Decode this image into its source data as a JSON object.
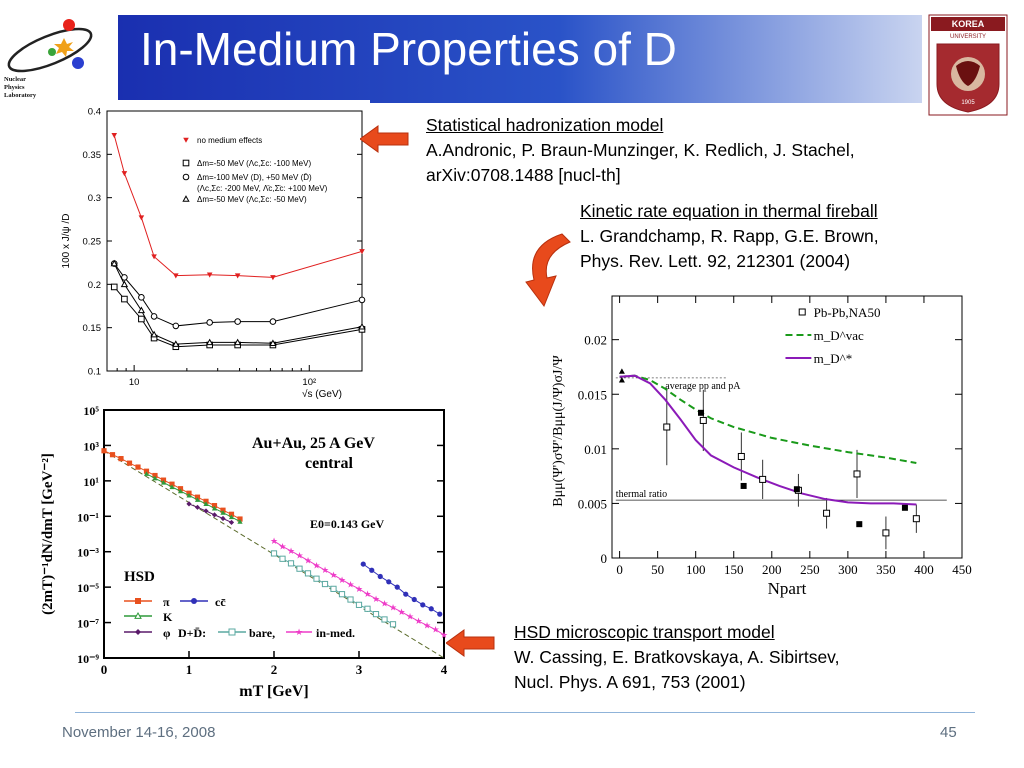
{
  "slide": {
    "title": "In-Medium Properties of D",
    "lab_logo_text": [
      "Nuclear",
      "Physics",
      "Laboratory"
    ],
    "university_logo_text": "KOREA UNIVERSITY",
    "university_year": "1905",
    "footer_date": "November 14-16, 2008",
    "page_number": "45",
    "colors": {
      "title_bar": "#2a53c8",
      "arrow": "#e84a1c",
      "footer_line": "#8fb3d9"
    }
  },
  "refs": {
    "stat": {
      "heading": "Statistical hadronization model",
      "authors": "A.Andronic, P. Braun-Munzinger, K. Redlich, J. Stachel,",
      "citation": "arXiv:0708.1488 [nucl-th]"
    },
    "kinetic": {
      "heading": "Kinetic rate equation in thermal fireball",
      "authors": "L. Grandchamp, R. Rapp, G.E. Brown,",
      "citation": "Phys. Rev. Lett. 92, 212301 (2004)"
    },
    "hsd": {
      "heading": "HSD microscopic transport model",
      "authors": "W. Cassing, E. Bratkovskaya, A. Sibirtsev,",
      "citation": "Nucl. Phys. A 691, 753 (2001)"
    }
  },
  "chart_data": [
    {
      "type": "line",
      "xscale": "log",
      "xlim": [
        7,
        200
      ],
      "ylim": [
        0.1,
        0.4
      ],
      "yticks": [
        "0.1",
        "0.15",
        "0.2",
        "0.25",
        "0.3",
        "0.35",
        "0.4"
      ],
      "xticks": [
        "10",
        "10²"
      ],
      "ylabel": "100 x J/ψ /D",
      "xlabel": "√s (GeV)",
      "legend": [
        "no medium effects",
        "Δm=-50 MeV (Λc,Σc: -100 MeV)",
        "Δm=-100 MeV (D), +50 MeV (D̄)",
        "(Λc,Σc: -200 MeV, Λ̄c,Σ̄c: +100 MeV)",
        "Δm=-50 MeV (Λc,Σc: -50 MeV)"
      ],
      "x": [
        7.7,
        8.8,
        11,
        13,
        17.3,
        27,
        39,
        62,
        200
      ],
      "series": [
        {
          "name": "no medium effects",
          "marker": "triangle-down",
          "color": "#e02020",
          "values": [
            0.372,
            0.328,
            0.277,
            0.232,
            0.21,
            0.211,
            0.21,
            0.208,
            0.238
          ]
        },
        {
          "name": "Δm=-50 MeV (Λc,Σc: -100 MeV)",
          "marker": "square",
          "color": "#000000",
          "values": [
            0.197,
            0.183,
            0.16,
            0.138,
            0.128,
            0.13,
            0.13,
            0.13,
            0.148
          ]
        },
        {
          "name": "Δm=-100 MeV (D), +50 MeV (D̄)",
          "marker": "circle",
          "color": "#000000",
          "values": [
            0.224,
            0.208,
            0.185,
            0.163,
            0.152,
            0.156,
            0.157,
            0.157,
            0.182
          ]
        },
        {
          "name": "Δm=-50 MeV (Λc,Σc: -50 MeV)",
          "marker": "triangle",
          "color": "#000000",
          "values": [
            0.224,
            0.2,
            0.17,
            0.142,
            0.131,
            0.133,
            0.133,
            0.132,
            0.151
          ]
        }
      ]
    },
    {
      "type": "scatter",
      "yscale": "log",
      "xlim": [
        0,
        4
      ],
      "ylim": [
        1e-09,
        100000.0
      ],
      "xticks": [
        "0",
        "1",
        "2",
        "3",
        "4"
      ],
      "yticks": [
        "10⁵",
        "10³",
        "10¹",
        "10⁻¹",
        "10⁻³",
        "10⁻⁵",
        "10⁻⁷",
        "10⁻⁹"
      ],
      "xlabel": "mT [GeV]",
      "ylabel": "(2mT)⁻¹dN/dmT [GeV⁻²]",
      "annotations": [
        "Au+Au, 25 A GeV",
        "central",
        "E0=0.143 GeV",
        "HSD"
      ],
      "legend": [
        "π",
        "K",
        "φ",
        "cc̄",
        "D+D̄:",
        "bare,",
        "in-med."
      ],
      "series": [
        {
          "name": "π",
          "color": "#e8501e",
          "marker": "square",
          "x": [
            0.0,
            0.1,
            0.2,
            0.3,
            0.4,
            0.5,
            0.6,
            0.7,
            0.8,
            0.9,
            1.0,
            1.1,
            1.2,
            1.3,
            1.4,
            1.5,
            1.6
          ],
          "values": [
            500,
            300,
            180,
            100,
            60,
            35,
            20,
            11,
            6.5,
            3.6,
            2,
            1.2,
            0.7,
            0.4,
            0.22,
            0.13,
            0.07
          ]
        },
        {
          "name": "K",
          "color": "#2e9a3a",
          "marker": "triangle",
          "x": [
            0.5,
            0.6,
            0.7,
            0.8,
            0.9,
            1.0,
            1.1,
            1.2,
            1.3,
            1.4,
            1.5,
            1.6
          ],
          "values": [
            25,
            14,
            8,
            4.5,
            2.6,
            1.5,
            0.85,
            0.5,
            0.28,
            0.16,
            0.09,
            0.05
          ]
        },
        {
          "name": "φ",
          "color": "#5a1a6a",
          "marker": "diamond",
          "x": [
            1.0,
            1.1,
            1.2,
            1.3,
            1.4,
            1.5
          ],
          "values": [
            0.5,
            0.32,
            0.2,
            0.12,
            0.075,
            0.045
          ]
        },
        {
          "name": "cc̄",
          "color": "#3030b8",
          "marker": "circle",
          "x": [
            3.05,
            3.15,
            3.25,
            3.35,
            3.45,
            3.55,
            3.65,
            3.75,
            3.85,
            3.95
          ],
          "values": [
            0.0002,
            9e-05,
            4e-05,
            2e-05,
            1e-05,
            4e-06,
            2e-06,
            1e-06,
            6e-07,
            3e-07
          ]
        },
        {
          "name": "bare",
          "color": "#5aa8a0",
          "marker": "square-open",
          "x": [
            2.0,
            2.1,
            2.2,
            2.3,
            2.4,
            2.5,
            2.6,
            2.7,
            2.8,
            2.9,
            3.0,
            3.1,
            3.2,
            3.3,
            3.4
          ],
          "values": [
            0.0008,
            0.0004,
            0.00022,
            0.00011,
            6e-05,
            3e-05,
            1.5e-05,
            8e-06,
            4e-06,
            2e-06,
            1e-06,
            6e-07,
            3e-07,
            1.5e-07,
            8e-08
          ]
        },
        {
          "name": "in-med.",
          "color": "#ee3cc8",
          "marker": "star",
          "x": [
            2.0,
            2.1,
            2.2,
            2.3,
            2.4,
            2.5,
            2.6,
            2.7,
            2.8,
            2.9,
            3.0,
            3.1,
            3.2,
            3.3,
            3.4,
            3.5,
            3.6,
            3.7,
            3.8,
            3.9,
            4.0
          ],
          "values": [
            0.004,
            0.002,
            0.0011,
            0.0006,
            0.00032,
            0.00017,
            9e-05,
            5e-05,
            2.6e-05,
            1.4e-05,
            8e-06,
            4e-06,
            2.2e-06,
            1.2e-06,
            7e-07,
            4e-07,
            2.2e-07,
            1.2e-07,
            7e-08,
            4e-08,
            2e-08
          ]
        }
      ],
      "fit": {
        "name": "E0=0.143 GeV",
        "x": [
          0,
          4
        ],
        "values": [
          500,
          1e-09
        ]
      }
    },
    {
      "type": "line",
      "xlim": [
        -10,
        450
      ],
      "ylim": [
        0,
        0.024
      ],
      "xticks": [
        "0",
        "50",
        "100",
        "150",
        "200",
        "250",
        "300",
        "350",
        "400",
        "450"
      ],
      "yticks": [
        "0",
        "0.005",
        "0.01",
        "0.015",
        "0.02"
      ],
      "xlabel": "Npart",
      "ylabel": "Bμμ(Ψ')σΨ'/Bμμ(J/Ψ)σJ/Ψ",
      "annotations": [
        "average pp and pA",
        "thermal ratio"
      ],
      "reference_lines": [
        {
          "name": "average pp and pA",
          "y": 0.0165
        },
        {
          "name": "thermal ratio",
          "y": 0.0053
        }
      ],
      "legend": [
        "Pb-Pb,NA50",
        "m_D^vac",
        "m_D^*"
      ],
      "series": [
        {
          "name": "m_D^vac",
          "color": "#1a9a1a",
          "dash": true,
          "x": [
            0,
            20,
            40,
            60,
            80,
            100,
            120,
            150,
            200,
            250,
            300,
            350,
            390
          ],
          "values": [
            0.0166,
            0.0167,
            0.0163,
            0.0155,
            0.0145,
            0.0136,
            0.0128,
            0.012,
            0.011,
            0.0103,
            0.0097,
            0.0092,
            0.0087
          ]
        },
        {
          "name": "m_D^*",
          "color": "#8b1ab8",
          "dash": false,
          "x": [
            0,
            20,
            40,
            60,
            80,
            100,
            120,
            150,
            180,
            210,
            240,
            270,
            300,
            330,
            360,
            390
          ],
          "values": [
            0.0166,
            0.0167,
            0.016,
            0.0145,
            0.0127,
            0.0108,
            0.0094,
            0.0083,
            0.0074,
            0.0066,
            0.0059,
            0.0054,
            0.0051,
            0.005,
            0.005,
            0.0049
          ]
        },
        {
          "name": "Pb-Pb,NA50",
          "color": "#000000",
          "marker": "square-open",
          "x": [
            62,
            110,
            160,
            188,
            235,
            272,
            312,
            350,
            390
          ],
          "values": [
            0.012,
            0.0126,
            0.0093,
            0.0072,
            0.0062,
            0.0041,
            0.0077,
            0.0023,
            0.0036
          ]
        },
        {
          "name": "filled-squares",
          "color": "#000000",
          "marker": "square",
          "x": [
            107,
            163,
            233,
            315,
            375
          ],
          "values": [
            0.0133,
            0.0066,
            0.0063,
            0.0031,
            0.0046
          ]
        },
        {
          "name": "filled-triangles",
          "color": "#000000",
          "marker": "triangle",
          "x": [
            3,
            3
          ],
          "values": [
            0.0171,
            0.0163
          ]
        }
      ]
    }
  ]
}
